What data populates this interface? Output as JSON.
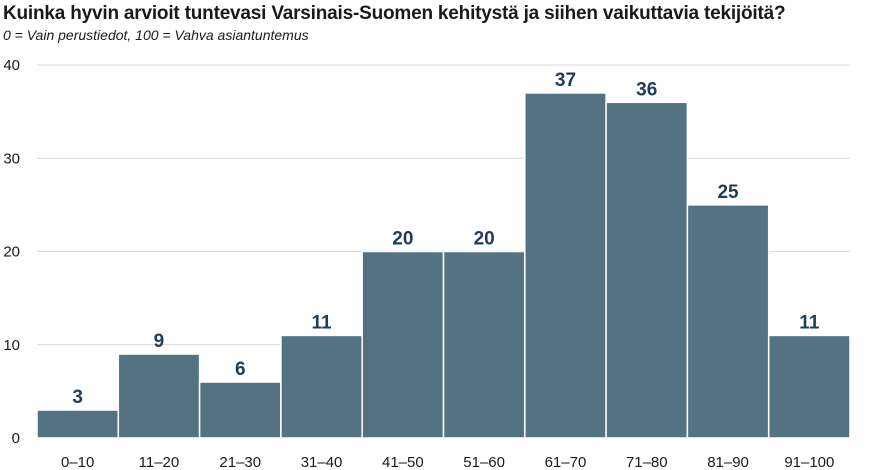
{
  "chart_data": {
    "type": "bar",
    "title": "Kuinka hyvin arvioit tuntevasi Varsinais-Suomen kehitystä ja siihen vaikuttavia tekijöitä?",
    "subtitle": "0 = Vain perustiedot, 100 = Vahva asiantuntemus",
    "xlabel": "",
    "ylabel": "",
    "categories": [
      "0–10",
      "11–20",
      "21–30",
      "31–40",
      "41–50",
      "51–60",
      "61–70",
      "71–80",
      "81–90",
      "91–100"
    ],
    "values": [
      3,
      9,
      6,
      11,
      20,
      20,
      37,
      36,
      25,
      11
    ],
    "ylim": [
      0,
      40
    ],
    "yticks": [
      0,
      10,
      20,
      30,
      40
    ],
    "grid": true,
    "legend": "none",
    "colors": {
      "bar": "#537282",
      "data_label": "#1f3c58",
      "grid": "#d9d9d9"
    }
  }
}
